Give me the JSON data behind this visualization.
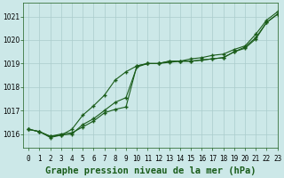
{
  "background_color": "#cce8e8",
  "grid_color": "#aacccc",
  "line_color": "#1a5c1a",
  "title": "Graphe pression niveau de la mer (hPa)",
  "xlim": [
    -0.5,
    23
  ],
  "ylim": [
    1015.4,
    1021.6
  ],
  "yticks": [
    1016,
    1017,
    1018,
    1019,
    1020,
    1021
  ],
  "xticks": [
    0,
    1,
    2,
    3,
    4,
    5,
    6,
    7,
    8,
    9,
    10,
    11,
    12,
    13,
    14,
    15,
    16,
    17,
    18,
    19,
    20,
    21,
    22,
    23
  ],
  "xtick_labels": [
    "0",
    "1",
    "2",
    "3",
    "4",
    "5",
    "6",
    "7",
    "8",
    "9",
    "10",
    "11",
    "12",
    "13",
    "14",
    "15",
    "16",
    "17",
    "18",
    "19",
    "20",
    "21",
    "22",
    "23"
  ],
  "series": [
    [
      1016.2,
      1016.1,
      1015.9,
      1016.0,
      1016.05,
      1016.3,
      1016.55,
      1016.9,
      1017.05,
      1017.15,
      1018.9,
      1019.0,
      1019.0,
      1019.1,
      1019.1,
      1019.1,
      1019.15,
      1019.2,
      1019.25,
      1019.5,
      1019.7,
      1020.1,
      1020.75,
      1021.1
    ],
    [
      1016.2,
      1016.1,
      1015.9,
      1015.95,
      1016.0,
      1016.4,
      1016.65,
      1017.0,
      1017.35,
      1017.55,
      1018.85,
      1019.0,
      1019.0,
      1019.05,
      1019.1,
      1019.1,
      1019.15,
      1019.2,
      1019.25,
      1019.5,
      1019.65,
      1020.05,
      1020.75,
      1021.1
    ],
    [
      1016.2,
      1016.1,
      1015.85,
      1015.95,
      1016.2,
      1016.8,
      1017.2,
      1017.65,
      1018.3,
      1018.65,
      1018.9,
      1019.0,
      1019.0,
      1019.1,
      1019.1,
      1019.2,
      1019.25,
      1019.35,
      1019.4,
      1019.6,
      1019.75,
      1020.25,
      1020.85,
      1021.2
    ]
  ],
  "marker": "+",
  "markersize": 3,
  "markeredgewidth": 1.0,
  "linewidth": 0.8,
  "title_fontsize": 7.5,
  "tick_fontsize": 5.5,
  "title_color": "#1a5c1a"
}
